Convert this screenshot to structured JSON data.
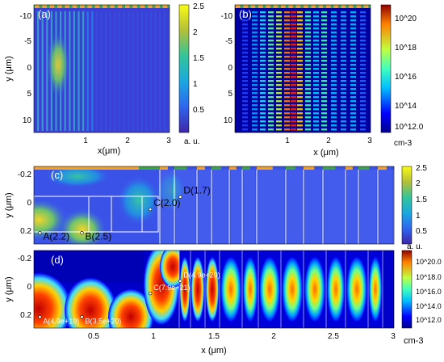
{
  "chart_data": [
    {
      "panel": "(a)",
      "type": "heatmap",
      "xlabel": "x(μm)",
      "ylabel": "y (μm)",
      "x_ticks": [
        "1",
        "2",
        "3"
      ],
      "y_ticks": [
        "-10",
        "-5",
        "0",
        "5",
        "10"
      ],
      "xlim": [
        0,
        3
      ],
      "ylim": [
        -12.5,
        12.5
      ],
      "colorbar": {
        "ticks": [
          "2.5",
          "2",
          "1.5",
          "1",
          "0.5"
        ],
        "unit": "a. u.",
        "range": [
          0,
          2.5
        ]
      },
      "colormap": "parula"
    },
    {
      "panel": "(b)",
      "type": "heatmap",
      "xlabel": "x (μm)",
      "ylabel": "",
      "x_ticks": [
        "1",
        "2",
        "3"
      ],
      "y_ticks": [
        "-10",
        "-5",
        "0",
        "5",
        "10"
      ],
      "xlim": [
        0,
        3
      ],
      "ylim": [
        -12.5,
        12.5
      ],
      "colorbar": {
        "ticks": [
          "10^20",
          "10^18",
          "10^16",
          "10^14",
          "10^12.0"
        ],
        "unit": "cm-3",
        "scale": "log"
      },
      "colormap": "jet"
    },
    {
      "panel": "(c)",
      "type": "heatmap",
      "xlabel": "",
      "ylabel": "y (μm)",
      "y_ticks": [
        "-0.2",
        "0",
        "0.2"
      ],
      "xlim": [
        0,
        3
      ],
      "ylim": [
        -0.28,
        0.28
      ],
      "colorbar": {
        "ticks": [
          "2.5",
          "2",
          "1.5",
          "1",
          "0.5"
        ],
        "unit": "a. u.",
        "range": [
          0,
          2.5
        ]
      },
      "colormap": "parula",
      "points": [
        {
          "label": "A(2.2)",
          "x": 0.05,
          "y": 0.2
        },
        {
          "label": "B(2.5)",
          "x": 0.4,
          "y": 0.2
        },
        {
          "label": "C(2.0)",
          "x": 0.97,
          "y": 0.03
        },
        {
          "label": "D(1.7)",
          "x": 1.22,
          "y": -0.06
        }
      ]
    },
    {
      "panel": "(d)",
      "type": "heatmap",
      "xlabel": "x (μm)",
      "ylabel": "y (μm)",
      "x_ticks": [
        "0.5",
        "1",
        "1.5",
        "2",
        "2.5",
        "3"
      ],
      "y_ticks": [
        "-0.2",
        "0",
        "0.2"
      ],
      "xlim": [
        0,
        3
      ],
      "ylim": [
        -0.28,
        0.28
      ],
      "colorbar": {
        "ticks": [
          "10^20.0",
          "10^18.0",
          "10^16.0",
          "10^14.0",
          "10^12.0"
        ],
        "unit": "cm-3",
        "scale": "log"
      },
      "colormap": "jet",
      "points": [
        {
          "label": "A(4.9e+19)",
          "x": 0.05,
          "y": 0.2
        },
        {
          "label": "B(3.5e+20)",
          "x": 0.4,
          "y": 0.2
        },
        {
          "label": "C(7.9e+21)",
          "x": 0.97,
          "y": 0.03
        },
        {
          "label": "D(4.9e+20)",
          "x": 1.22,
          "y": -0.06
        }
      ]
    }
  ]
}
